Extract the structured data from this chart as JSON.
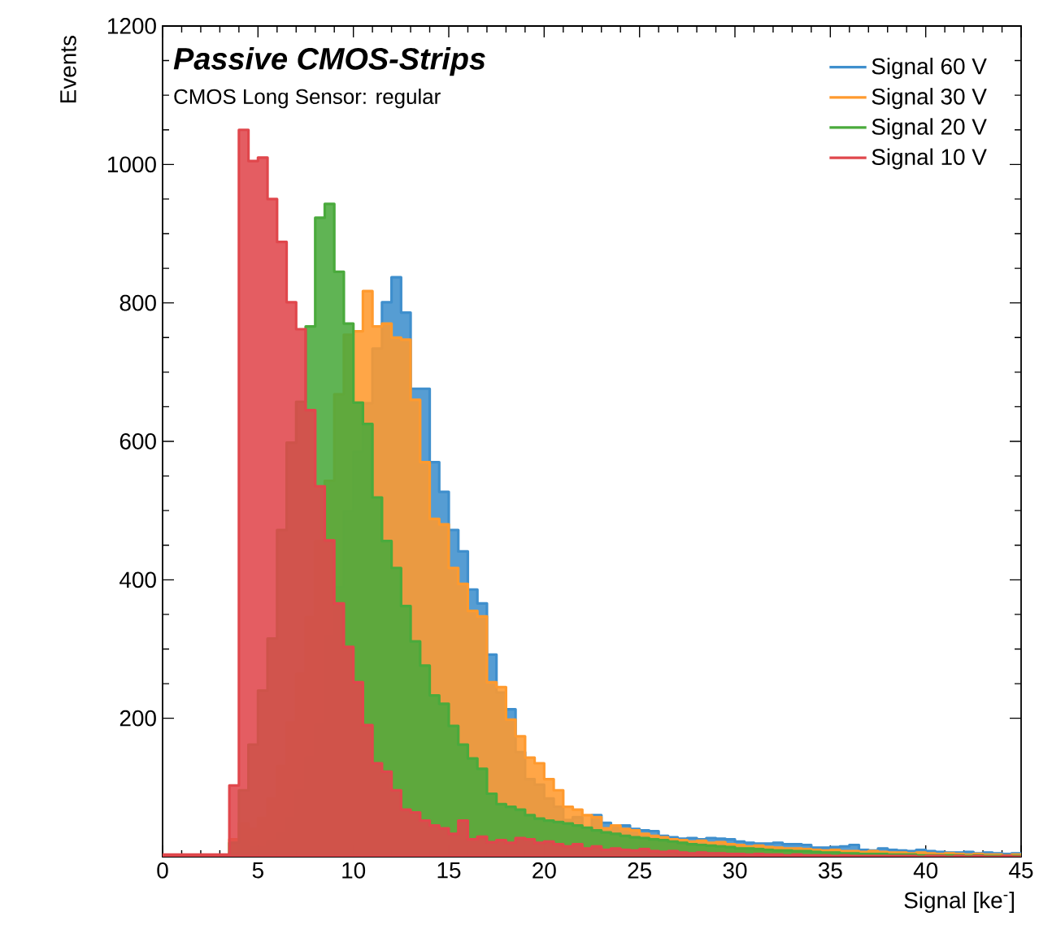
{
  "chart_data": {
    "type": "histogram",
    "title": "Passive CMOS-Strips",
    "subtitle": "CMOS Long Sensor: regular",
    "xlabel": "Signal [ke$^{-}$]",
    "ylabel": "Events",
    "bins": [
      0,
      0.5,
      1,
      1.5,
      2,
      2.5,
      3,
      3.5,
      4,
      4.5,
      5,
      5.5,
      6,
      6.5,
      7,
      7.5,
      8,
      8.5,
      9,
      9.5,
      10,
      10.5,
      11,
      11.5,
      12,
      12.5,
      13,
      13.5,
      14,
      14.5,
      15,
      15.5,
      16,
      16.5,
      17,
      17.5,
      18,
      18.5,
      19,
      19.5,
      20,
      20.5,
      21,
      21.5,
      22,
      22.5,
      23,
      23.5,
      24,
      24.5,
      25,
      25.5,
      26,
      26.5,
      27,
      27.5,
      28,
      28.5,
      29,
      29.5,
      30,
      30.5,
      31,
      31.5,
      32,
      32.5,
      33,
      33.5,
      34,
      34.5,
      35,
      35.5,
      36,
      36.5,
      37,
      37.5,
      38,
      38.5,
      39,
      39.5,
      40,
      40.5,
      41,
      41.5,
      42,
      42.5,
      43,
      43.5,
      44,
      44.5,
      45
    ],
    "series": [
      {
        "name": "Signal 60 V",
        "color": "#3f8fcd",
        "values": [
          0,
          0,
          0,
          0,
          0,
          0,
          0,
          5,
          21,
          13,
          13,
          21,
          33,
          56,
          96,
          143,
          190,
          319,
          389,
          499,
          585,
          655,
          734,
          801,
          837,
          786,
          676,
          676,
          570,
          527,
          472,
          441,
          386,
          366,
          292,
          237,
          213,
          151,
          112,
          104,
          84,
          72,
          53,
          57,
          41,
          60,
          49,
          45,
          45,
          40,
          38,
          37,
          30,
          28,
          26,
          27,
          25,
          27,
          26,
          25,
          22,
          20,
          19,
          19,
          20,
          18,
          18,
          17,
          13,
          13,
          14,
          15,
          17,
          10,
          9,
          12,
          10,
          9,
          8,
          10,
          8,
          7,
          6,
          6,
          7,
          5,
          6,
          5,
          4,
          5
        ]
      },
      {
        "name": "Signal 30 V",
        "color": "#ff9a2e",
        "values": [
          0,
          0,
          0,
          0,
          0,
          0,
          0,
          25,
          48,
          40,
          56,
          84,
          131,
          194,
          264,
          346,
          456,
          543,
          668,
          754,
          759,
          817,
          766,
          770,
          750,
          747,
          660,
          570,
          488,
          480,
          417,
          394,
          355,
          347,
          252,
          245,
          198,
          174,
          143,
          135,
          112,
          96,
          72,
          68,
          60,
          57,
          41,
          45,
          40,
          38,
          33,
          30,
          28,
          25,
          24,
          22,
          23,
          20,
          21,
          18,
          17,
          15,
          16,
          14,
          13,
          12,
          12,
          11,
          10,
          9,
          10,
          8,
          8,
          7,
          8,
          7,
          6,
          6,
          5,
          6,
          5,
          4,
          5,
          4,
          3,
          4,
          3,
          3,
          2,
          3
        ]
      },
      {
        "name": "Signal 20 V",
        "color": "#4aaa3c",
        "values": [
          0,
          0,
          0,
          0,
          0,
          0,
          0,
          20,
          96,
          162,
          240,
          315,
          472,
          598,
          657,
          766,
          923,
          943,
          845,
          770,
          656,
          625,
          519,
          456,
          417,
          362,
          311,
          276,
          233,
          221,
          189,
          162,
          142,
          127,
          91,
          76,
          72,
          68,
          60,
          55,
          52,
          50,
          48,
          45,
          42,
          38,
          35,
          33,
          30,
          28,
          27,
          25,
          24,
          22,
          20,
          18,
          17,
          16,
          15,
          14,
          12,
          12,
          11,
          10,
          9,
          9,
          8,
          8,
          7,
          6,
          6,
          5,
          5,
          4,
          4,
          4,
          3,
          3,
          3,
          2,
          2,
          2,
          2,
          2,
          1,
          2,
          1,
          1,
          1,
          1
        ]
      },
      {
        "name": "Signal 10 V",
        "color": "#e0474c",
        "values": [
          3,
          3,
          3,
          3,
          3,
          3,
          3,
          103,
          1050,
          1005,
          1010,
          950,
          888,
          801,
          762,
          645,
          535,
          457,
          366,
          303,
          252,
          190,
          135,
          123,
          96,
          68,
          64,
          52,
          45,
          41,
          33,
          52,
          25,
          29,
          21,
          24,
          20,
          27,
          25,
          20,
          22,
          18,
          15,
          18,
          12,
          15,
          10,
          12,
          10,
          9,
          11,
          8,
          7,
          8,
          6,
          5,
          6,
          5,
          5,
          4,
          4,
          3,
          4,
          3,
          3,
          2,
          3,
          2,
          2,
          2,
          1,
          2,
          1,
          1,
          1,
          1,
          1,
          1,
          1,
          0,
          1,
          1,
          0,
          1,
          0,
          1,
          0,
          0,
          1,
          0
        ]
      }
    ],
    "xlim": [
      0,
      45
    ],
    "ylim": [
      0,
      1200
    ],
    "xticks": [
      0,
      5,
      10,
      15,
      20,
      25,
      30,
      35,
      40,
      45
    ],
    "yticks": [
      200,
      400,
      600,
      800,
      1000,
      1200
    ],
    "legend": "top right"
  }
}
